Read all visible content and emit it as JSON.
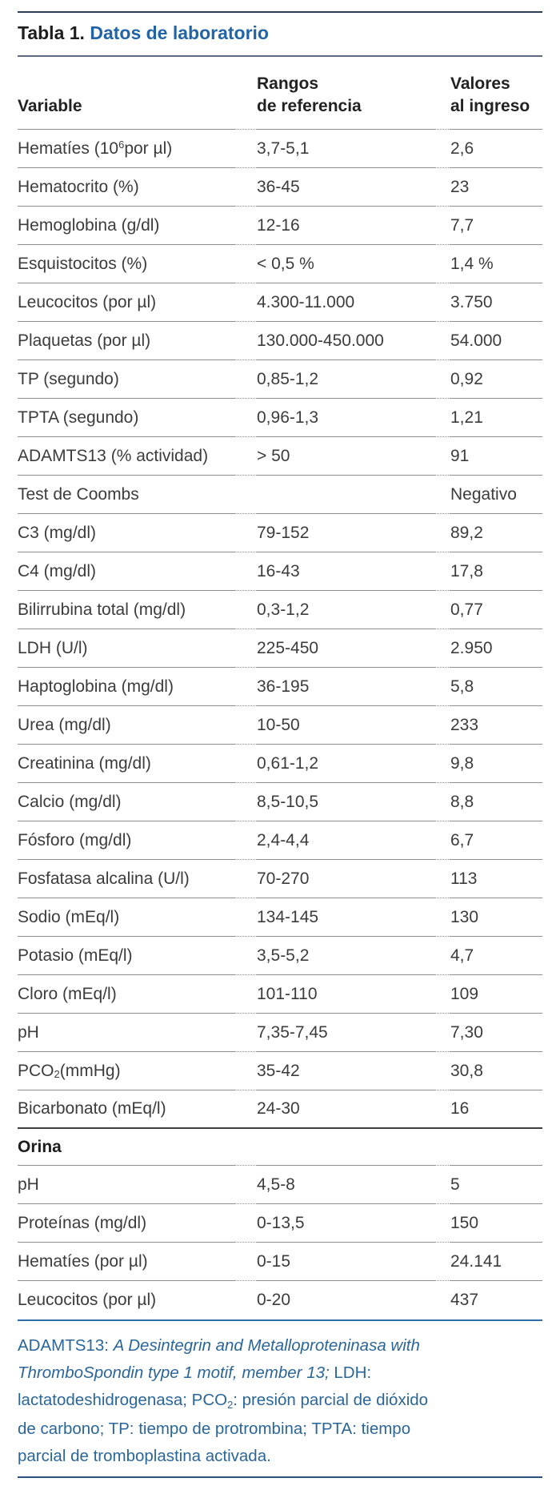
{
  "title": {
    "prefix": "Tabla 1.",
    "rest": "Datos de laboratorio"
  },
  "colors": {
    "accent_blue": "#2264a5",
    "footnote_blue": "#2b6699",
    "rule_dark_navy": "#2e3e52",
    "rule_blue": "#2e6da5",
    "rule_bottom_navy": "#29517c",
    "divider_gray": "#8f8f8f",
    "body_text": "#3c3c3c"
  },
  "table": {
    "columns": [
      {
        "lines": [
          "Variable"
        ]
      },
      {
        "lines": [
          "Rangos",
          "de referencia"
        ]
      },
      {
        "lines": [
          "Valores",
          "al ingreso"
        ]
      }
    ],
    "rows": [
      {
        "variable": [
          {
            "t": "Hematíes (10"
          },
          {
            "t": "6",
            "sup": true
          },
          {
            "t": " por µl)"
          }
        ],
        "range": "3,7-5,1",
        "value": "2,6"
      },
      {
        "variable": "Hematocrito (%)",
        "range": "36-45",
        "value": "23"
      },
      {
        "variable": "Hemoglobina (g/dl)",
        "range": "12-16",
        "value": "7,7"
      },
      {
        "variable": "Esquistocitos (%)",
        "range": "< 0,5 %",
        "value": "1,4 %"
      },
      {
        "variable": "Leucocitos (por µl)",
        "range": "4.300-11.000",
        "value": "3.750"
      },
      {
        "variable": "Plaquetas (por µl)",
        "range": "130.000-450.000",
        "value": "54.000"
      },
      {
        "variable": "TP (segundo)",
        "range": "0,85-1,2",
        "value": "0,92"
      },
      {
        "variable": "TPTA (segundo)",
        "range": "0,96-1,3",
        "value": "1,21"
      },
      {
        "variable": "ADAMTS13 (% actividad)",
        "range": "> 50",
        "value": "91"
      },
      {
        "variable": "Test de Coombs",
        "range": "",
        "value": "Negativo"
      },
      {
        "variable": "C3 (mg/dl)",
        "range": "79-152",
        "value": "89,2"
      },
      {
        "variable": "C4 (mg/dl)",
        "range": "16-43",
        "value": "17,8"
      },
      {
        "variable": "Bilirrubina total (mg/dl)",
        "range": "0,3-1,2",
        "value": "0,77"
      },
      {
        "variable": "LDH (U/l)",
        "range": "225-450",
        "value": "2.950"
      },
      {
        "variable": "Haptoglobina (mg/dl)",
        "range": "36-195",
        "value": "5,8"
      },
      {
        "variable": "Urea (mg/dl)",
        "range": "10-50",
        "value": "233"
      },
      {
        "variable": "Creatinina (mg/dl)",
        "range": "0,61-1,2",
        "value": "9,8"
      },
      {
        "variable": "Calcio (mg/dl)",
        "range": "8,5-10,5",
        "value": "8,8"
      },
      {
        "variable": "Fósforo (mg/dl)",
        "range": "2,4-4,4",
        "value": "6,7"
      },
      {
        "variable": "Fosfatasa alcalina (U/l)",
        "range": "70-270",
        "value": "113"
      },
      {
        "variable": "Sodio (mEq/l)",
        "range": "134-145",
        "value": "130"
      },
      {
        "variable": "Potasio (mEq/l)",
        "range": "3,5-5,2",
        "value": "4,7"
      },
      {
        "variable": "Cloro (mEq/l)",
        "range": "101-110",
        "value": "109"
      },
      {
        "variable": "pH",
        "range": "7,35-7,45",
        "value": "7,30"
      },
      {
        "variable": [
          {
            "t": "PCO"
          },
          {
            "t": "2",
            "sub": true
          },
          {
            "t": " (mmHg)"
          }
        ],
        "range": "35-42",
        "value": "30,8"
      },
      {
        "variable": "Bicarbonato (mEq/l)",
        "range": "24-30",
        "value": "16"
      },
      {
        "section": "Orina"
      },
      {
        "variable": "pH",
        "range": "4,5-8",
        "value": "5"
      },
      {
        "variable": "Proteínas (mg/dl)",
        "range": "0-13,5",
        "value": "150"
      },
      {
        "variable": "Hematíes (por µl)",
        "range": "0-15",
        "value": "24.141"
      },
      {
        "variable": "Leucocitos (por µl)",
        "range": "0-20",
        "value": "437"
      }
    ]
  },
  "footnote": {
    "lines": [
      [
        {
          "t": "ADAMTS13: "
        },
        {
          "t": "A Desintegrin and Metalloproteninasa with",
          "italic": true
        }
      ],
      [
        {
          "t": "ThromboSpondin type 1 motif, member 13;",
          "italic": true
        },
        {
          "t": " LDH:"
        }
      ],
      [
        {
          "t": "lactatodeshidrogenasa; PCO"
        },
        {
          "t": "2",
          "sub": true
        },
        {
          "t": ": presión parcial de dióxido"
        }
      ],
      [
        {
          "t": "de carbono; TP: tiempo de protrombina; TPTA: tiempo"
        }
      ],
      [
        {
          "t": "parcial de tromboplastina activada."
        }
      ]
    ]
  }
}
